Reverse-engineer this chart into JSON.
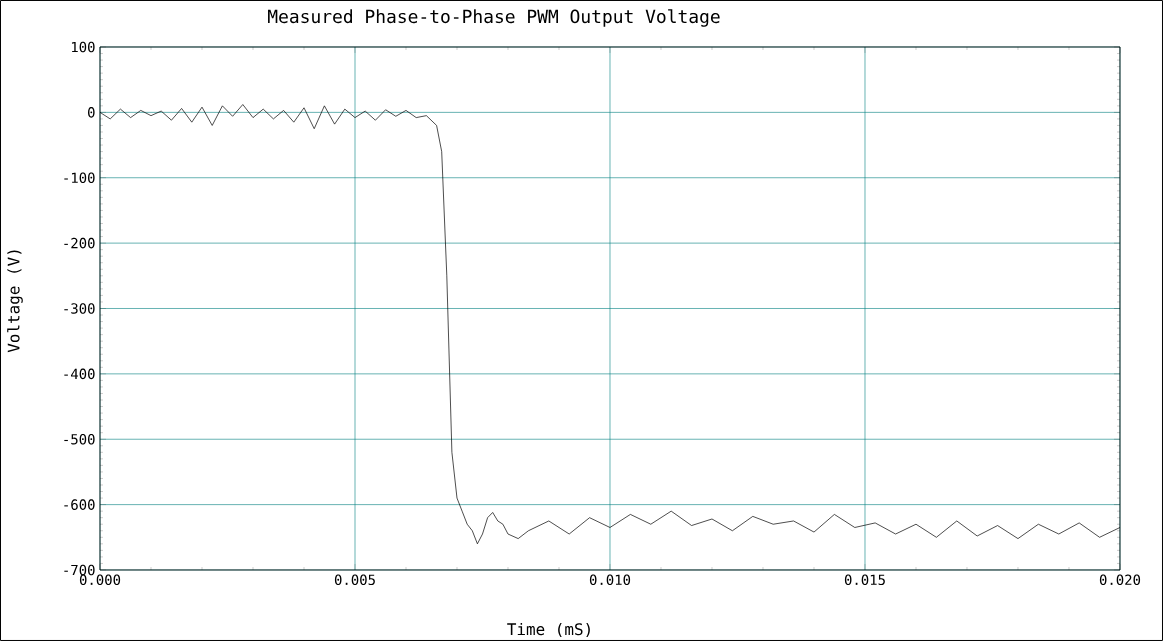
{
  "chart_data": {
    "type": "line",
    "title": "Measured Phase-to-Phase PWM Output Voltage",
    "xlabel": "Time (mS)",
    "ylabel": "Voltage (V)",
    "xlim": [
      0,
      0.02
    ],
    "ylim": [
      -700,
      100
    ],
    "xticks": [
      {
        "value": 0,
        "label": "0.000"
      },
      {
        "value": 0.005,
        "label": "0.005"
      },
      {
        "value": 0.01,
        "label": "0.010"
      },
      {
        "value": 0.015,
        "label": "0.015"
      },
      {
        "value": 0.02,
        "label": "0.020"
      }
    ],
    "yticks": [
      -700,
      -600,
      -500,
      -400,
      -300,
      -200,
      -100,
      0,
      100
    ],
    "grid": true,
    "marker": "none",
    "line_style": "solid",
    "series": [
      {
        "color": "#000000",
        "x": [
          0,
          0.0002,
          0.0004,
          0.0006,
          0.0008,
          0.001,
          0.0012,
          0.0014,
          0.0016,
          0.0018,
          0.002,
          0.0022,
          0.0024,
          0.0026,
          0.0028,
          0.003,
          0.0032,
          0.0034,
          0.0036,
          0.0038,
          0.004,
          0.0042,
          0.0044,
          0.0046,
          0.0048,
          0.005,
          0.0052,
          0.0054,
          0.0056,
          0.0058,
          0.006,
          0.0062,
          0.0064,
          0.0066,
          0.0067,
          0.0068,
          0.0069,
          0.007,
          0.0071,
          0.0072,
          0.0073,
          0.0074,
          0.0075,
          0.0076,
          0.0077,
          0.0078,
          0.0079,
          0.008,
          0.0082,
          0.0084,
          0.0088,
          0.0092,
          0.0096,
          0.01,
          0.0104,
          0.0108,
          0.0112,
          0.0116,
          0.012,
          0.0124,
          0.0128,
          0.0132,
          0.0136,
          0.014,
          0.0144,
          0.0148,
          0.0152,
          0.0156,
          0.016,
          0.0164,
          0.0168,
          0.0172,
          0.0176,
          0.018,
          0.0184,
          0.0188,
          0.0192,
          0.0196,
          0.02
        ],
        "values": [
          0,
          -10,
          5,
          -8,
          3,
          -5,
          2,
          -12,
          6,
          -15,
          8,
          -20,
          10,
          -6,
          12,
          -8,
          5,
          -10,
          3,
          -15,
          7,
          -25,
          10,
          -18,
          5,
          -8,
          2,
          -12,
          4,
          -6,
          3,
          -8,
          -5,
          -20,
          -60,
          -250,
          -520,
          -590,
          -610,
          -630,
          -640,
          -660,
          -645,
          -620,
          -612,
          -625,
          -630,
          -645,
          -652,
          -640,
          -625,
          -645,
          -620,
          -635,
          -615,
          -630,
          -610,
          -632,
          -622,
          -640,
          -618,
          -630,
          -625,
          -642,
          -615,
          -635,
          -628,
          -645,
          -630,
          -650,
          -625,
          -648,
          -632,
          -652,
          -630,
          -645,
          -628,
          -650,
          -635
        ]
      }
    ]
  }
}
